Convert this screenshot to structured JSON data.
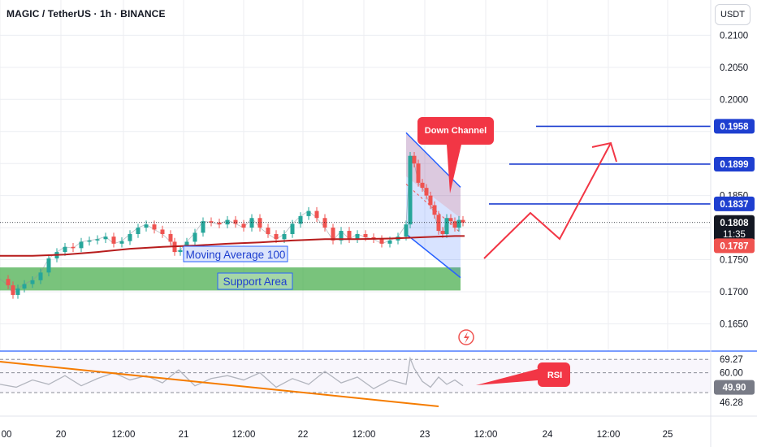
{
  "header": {
    "symbol_title": "MAGIC / TetherUS · 1h · BINANCE",
    "currency": "USDT"
  },
  "colors": {
    "up": "#26a69a",
    "down": "#ef5350",
    "ma": "#b71c1c",
    "channel": "#2962ff",
    "support": "#4caf50",
    "rsi_line": "#b2b5be",
    "rsi_trend": "#f57c00",
    "arrow": "#f23645",
    "level_line": "#1e3fd0"
  },
  "chart_data": [
    {
      "type": "line",
      "title": "MAGIC / TetherUS · 1h · BINANCE",
      "x_ticks": [
        "00",
        "20",
        "12:00",
        "21",
        "12:00",
        "22",
        "12:00",
        "23",
        "12:00",
        "24",
        "12:00",
        "25"
      ],
      "y_ticks": [
        "0.2100",
        "0.2050",
        "0.2000",
        "0.1850",
        "0.1750",
        "0.1700",
        "0.1650"
      ],
      "ylim": [
        0.161,
        0.2155
      ],
      "series": [
        {
          "name": "Moving Average 100",
          "x": [
            0,
            40,
            80,
            120,
            160,
            200,
            240,
            280,
            320,
            360,
            400,
            440,
            480,
            520,
            560,
            572
          ],
          "values": [
            0.1756,
            0.1756,
            0.1758,
            0.1762,
            0.1767,
            0.177,
            0.1772,
            0.1775,
            0.1777,
            0.178,
            0.1782,
            0.1782,
            0.1783,
            0.1785,
            0.1787,
            0.1787
          ]
        },
        {
          "name": "Price",
          "x": [
            0,
            10,
            16,
            22,
            30,
            40,
            50,
            60,
            70,
            80,
            90,
            100,
            110,
            120,
            130,
            140,
            150,
            160,
            170,
            180,
            190,
            200,
            210,
            215,
            222,
            230,
            240,
            250,
            260,
            270,
            280,
            290,
            300,
            310,
            320,
            330,
            340,
            350,
            360,
            370,
            380,
            390,
            400,
            410,
            420,
            430,
            440,
            450,
            460,
            470,
            480,
            490,
            500,
            505,
            510,
            515,
            520,
            525,
            530,
            535,
            540,
            545,
            550,
            555,
            560,
            565,
            570
          ],
          "values": [
            0.172,
            0.171,
            0.1695,
            0.1705,
            0.1712,
            0.1718,
            0.173,
            0.1752,
            0.1762,
            0.177,
            0.1768,
            0.1778,
            0.178,
            0.1782,
            0.1786,
            0.1775,
            0.1779,
            0.179,
            0.18,
            0.1805,
            0.1797,
            0.179,
            0.1778,
            0.1762,
            0.1765,
            0.1778,
            0.1792,
            0.181,
            0.1808,
            0.1805,
            0.1812,
            0.1806,
            0.18,
            0.1815,
            0.18,
            0.179,
            0.1782,
            0.179,
            0.1806,
            0.1818,
            0.1826,
            0.1815,
            0.18,
            0.178,
            0.1795,
            0.1782,
            0.179,
            0.1785,
            0.1782,
            0.1775,
            0.178,
            0.1786,
            0.1805,
            0.1912,
            0.19,
            0.187,
            0.1862,
            0.185,
            0.1835,
            0.182,
            0.1795,
            0.179,
            0.1815,
            0.181,
            0.18,
            0.1812,
            0.1808
          ]
        }
      ],
      "price_tags": [
        "0.1958",
        "0.1899",
        "0.1837",
        "0.1808",
        "11:35",
        "0.1787"
      ],
      "levels": [
        0.1958,
        0.1899,
        0.1837
      ],
      "current_price": 0.1808,
      "ma_value": 0.1787,
      "grid": true,
      "legend": "none"
    },
    {
      "type": "line",
      "title": "RSI",
      "y_ticks": [
        "69.27",
        "60.00",
        "49.90",
        "46.28"
      ],
      "ylim": [
        30,
        75
      ],
      "series": [
        {
          "name": "RSI",
          "x": [
            0,
            20,
            40,
            60,
            80,
            100,
            120,
            140,
            160,
            180,
            200,
            220,
            240,
            260,
            280,
            300,
            320,
            340,
            360,
            380,
            400,
            420,
            440,
            460,
            480,
            500,
            505,
            510,
            520,
            530,
            540,
            550,
            560,
            570
          ],
          "values": [
            52,
            50,
            55,
            52,
            58,
            51,
            56,
            60,
            55,
            58,
            53,
            62,
            51,
            56,
            58,
            55,
            60,
            50,
            56,
            52,
            61,
            53,
            57,
            49,
            55,
            52,
            70,
            63,
            54,
            50,
            57,
            52,
            55,
            51
          ]
        }
      ],
      "current_rsi": 49.9,
      "grid": true,
      "legend": "none"
    }
  ],
  "annotations": {
    "moving_average": "Moving Average 100",
    "support_area": "Support Area",
    "down_channel": "Down Channel",
    "rsi": "RSI"
  }
}
